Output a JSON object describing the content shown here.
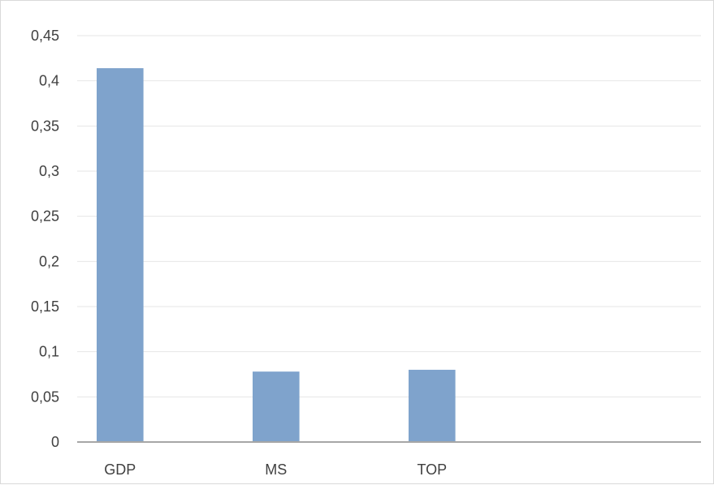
{
  "chart_data": {
    "type": "bar",
    "title": "",
    "xlabel": "",
    "ylabel": "",
    "categories": [
      "GDP",
      "MS",
      "TOP",
      ""
    ],
    "values": [
      0.414,
      0.078,
      0.08,
      0
    ],
    "y_ticks": [
      "0",
      "0,05",
      "0,1",
      "0,15",
      "0,2",
      "0,25",
      "0,3",
      "0,35",
      "0,4",
      "0,45"
    ],
    "ylim": [
      0,
      0.45
    ],
    "grid": true,
    "legend": "none",
    "bar_color": "#7fa3cc",
    "grid_color": "#e6e6e6",
    "axis_color": "#a6a6a6"
  }
}
